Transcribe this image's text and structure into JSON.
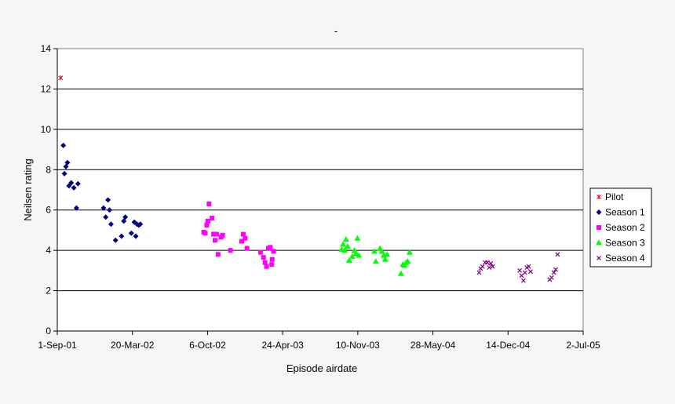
{
  "chart_data": {
    "type": "scatter",
    "title": "-",
    "xlabel": "Episode airdate",
    "ylabel": "Neilsen rating",
    "ylim": [
      0,
      14
    ],
    "yticks": [
      "0",
      "2",
      "4",
      "6",
      "8",
      "10",
      "12",
      "14"
    ],
    "xlim": [
      "2001-09-01",
      "2005-07-02"
    ],
    "xticks": [
      {
        "label": "1-Sep-01",
        "date": "2001-09-01"
      },
      {
        "label": "20-Mar-02",
        "date": "2002-03-20"
      },
      {
        "label": "6-Oct-02",
        "date": "2002-10-06"
      },
      {
        "label": "24-Apr-03",
        "date": "2003-04-24"
      },
      {
        "label": "10-Nov-03",
        "date": "2003-11-10"
      },
      {
        "label": "28-May-04",
        "date": "2004-05-28"
      },
      {
        "label": "14-Dec-04",
        "date": "2004-12-14"
      },
      {
        "label": "2-Jul-05",
        "date": "2005-07-02"
      }
    ],
    "grid": "horizontal",
    "legend": "right",
    "series": [
      {
        "name": "Pilot",
        "marker": "star",
        "color": "#ff0000",
        "points": [
          {
            "x": "2001-09-10",
            "y": 12.55
          }
        ]
      },
      {
        "name": "Season 1",
        "marker": "diamond",
        "color": "#000080",
        "points": [
          {
            "x": "2001-09-17",
            "y": 9.2
          },
          {
            "x": "2001-09-20",
            "y": 7.8
          },
          {
            "x": "2001-09-24",
            "y": 8.15
          },
          {
            "x": "2001-09-28",
            "y": 8.35
          },
          {
            "x": "2001-10-02",
            "y": 7.2
          },
          {
            "x": "2001-10-08",
            "y": 7.35
          },
          {
            "x": "2001-10-15",
            "y": 7.1
          },
          {
            "x": "2001-10-22",
            "y": 6.1
          },
          {
            "x": "2001-10-26",
            "y": 7.3
          },
          {
            "x": "2002-01-02",
            "y": 6.1
          },
          {
            "x": "2002-01-08",
            "y": 5.65
          },
          {
            "x": "2002-01-14",
            "y": 6.5
          },
          {
            "x": "2002-01-18",
            "y": 6.0
          },
          {
            "x": "2002-01-22",
            "y": 5.3
          },
          {
            "x": "2002-02-03",
            "y": 4.5
          },
          {
            "x": "2002-02-19",
            "y": 4.7
          },
          {
            "x": "2002-02-25",
            "y": 5.45
          },
          {
            "x": "2002-03-01",
            "y": 5.65
          },
          {
            "x": "2002-03-17",
            "y": 4.85
          },
          {
            "x": "2002-03-25",
            "y": 5.4
          },
          {
            "x": "2002-03-29",
            "y": 4.7
          },
          {
            "x": "2002-04-01",
            "y": 5.3
          },
          {
            "x": "2002-04-06",
            "y": 5.25
          },
          {
            "x": "2002-04-10",
            "y": 5.3
          }
        ]
      },
      {
        "name": "Season 2",
        "marker": "square",
        "color": "#ff00ff",
        "points": [
          {
            "x": "2002-09-26",
            "y": 4.9
          },
          {
            "x": "2002-09-30",
            "y": 4.85
          },
          {
            "x": "2002-10-04",
            "y": 5.25
          },
          {
            "x": "2002-10-07",
            "y": 5.45
          },
          {
            "x": "2002-10-10",
            "y": 6.3
          },
          {
            "x": "2002-10-18",
            "y": 5.6
          },
          {
            "x": "2002-10-22",
            "y": 4.8
          },
          {
            "x": "2002-10-26",
            "y": 4.5
          },
          {
            "x": "2002-10-30",
            "y": 4.8
          },
          {
            "x": "2002-11-03",
            "y": 3.8
          },
          {
            "x": "2002-11-11",
            "y": 4.65
          },
          {
            "x": "2002-11-15",
            "y": 4.75
          },
          {
            "x": "2002-12-06",
            "y": 4.0
          },
          {
            "x": "2003-01-05",
            "y": 4.45
          },
          {
            "x": "2003-01-09",
            "y": 4.8
          },
          {
            "x": "2003-01-14",
            "y": 4.6
          },
          {
            "x": "2003-01-19",
            "y": 4.1
          },
          {
            "x": "2003-02-24",
            "y": 3.9
          },
          {
            "x": "2003-03-04",
            "y": 3.65
          },
          {
            "x": "2003-03-08",
            "y": 3.4
          },
          {
            "x": "2003-03-12",
            "y": 3.2
          },
          {
            "x": "2003-03-17",
            "y": 4.1
          },
          {
            "x": "2003-03-22",
            "y": 4.15
          },
          {
            "x": "2003-03-26",
            "y": 3.3
          },
          {
            "x": "2003-03-27",
            "y": 3.55
          },
          {
            "x": "2003-03-31",
            "y": 3.95
          }
        ]
      },
      {
        "name": "Season 3",
        "marker": "triangle",
        "color": "#00ff00",
        "points": [
          {
            "x": "2003-09-28",
            "y": 4.05
          },
          {
            "x": "2003-10-02",
            "y": 4.3
          },
          {
            "x": "2003-10-06",
            "y": 4.0
          },
          {
            "x": "2003-10-10",
            "y": 4.55
          },
          {
            "x": "2003-10-14",
            "y": 4.2
          },
          {
            "x": "2003-10-18",
            "y": 3.5
          },
          {
            "x": "2003-10-26",
            "y": 3.7
          },
          {
            "x": "2003-11-01",
            "y": 4.0
          },
          {
            "x": "2003-11-05",
            "y": 3.85
          },
          {
            "x": "2003-11-09",
            "y": 4.6
          },
          {
            "x": "2003-11-13",
            "y": 3.75
          },
          {
            "x": "2003-12-24",
            "y": 3.95
          },
          {
            "x": "2003-12-28",
            "y": 3.45
          },
          {
            "x": "2004-01-08",
            "y": 4.1
          },
          {
            "x": "2004-01-13",
            "y": 3.95
          },
          {
            "x": "2004-01-18",
            "y": 3.75
          },
          {
            "x": "2004-01-22",
            "y": 3.55
          },
          {
            "x": "2004-01-27",
            "y": 3.8
          },
          {
            "x": "2004-03-04",
            "y": 2.85
          },
          {
            "x": "2004-03-09",
            "y": 3.3
          },
          {
            "x": "2004-03-13",
            "y": 3.25
          },
          {
            "x": "2004-03-18",
            "y": 3.4
          },
          {
            "x": "2004-03-22",
            "y": 3.45
          },
          {
            "x": "2004-03-27",
            "y": 3.9
          }
        ]
      },
      {
        "name": "Season 4",
        "marker": "cross",
        "color": "#800080",
        "points": [
          {
            "x": "2004-09-28",
            "y": 2.9
          },
          {
            "x": "2004-10-02",
            "y": 3.1
          },
          {
            "x": "2004-10-07",
            "y": 3.2
          },
          {
            "x": "2004-10-14",
            "y": 3.4
          },
          {
            "x": "2004-10-20",
            "y": 3.4
          },
          {
            "x": "2004-10-25",
            "y": 3.15
          },
          {
            "x": "2004-10-29",
            "y": 3.35
          },
          {
            "x": "2004-11-03",
            "y": 3.2
          },
          {
            "x": "2005-01-14",
            "y": 3.0
          },
          {
            "x": "2005-01-19",
            "y": 2.75
          },
          {
            "x": "2005-01-24",
            "y": 2.5
          },
          {
            "x": "2005-01-28",
            "y": 2.9
          },
          {
            "x": "2005-02-02",
            "y": 3.15
          },
          {
            "x": "2005-02-07",
            "y": 3.2
          },
          {
            "x": "2005-02-12",
            "y": 2.95
          },
          {
            "x": "2005-04-04",
            "y": 2.55
          },
          {
            "x": "2005-04-09",
            "y": 2.65
          },
          {
            "x": "2005-04-15",
            "y": 2.9
          },
          {
            "x": "2005-04-20",
            "y": 3.05
          },
          {
            "x": "2005-04-25",
            "y": 3.8
          }
        ]
      }
    ]
  }
}
